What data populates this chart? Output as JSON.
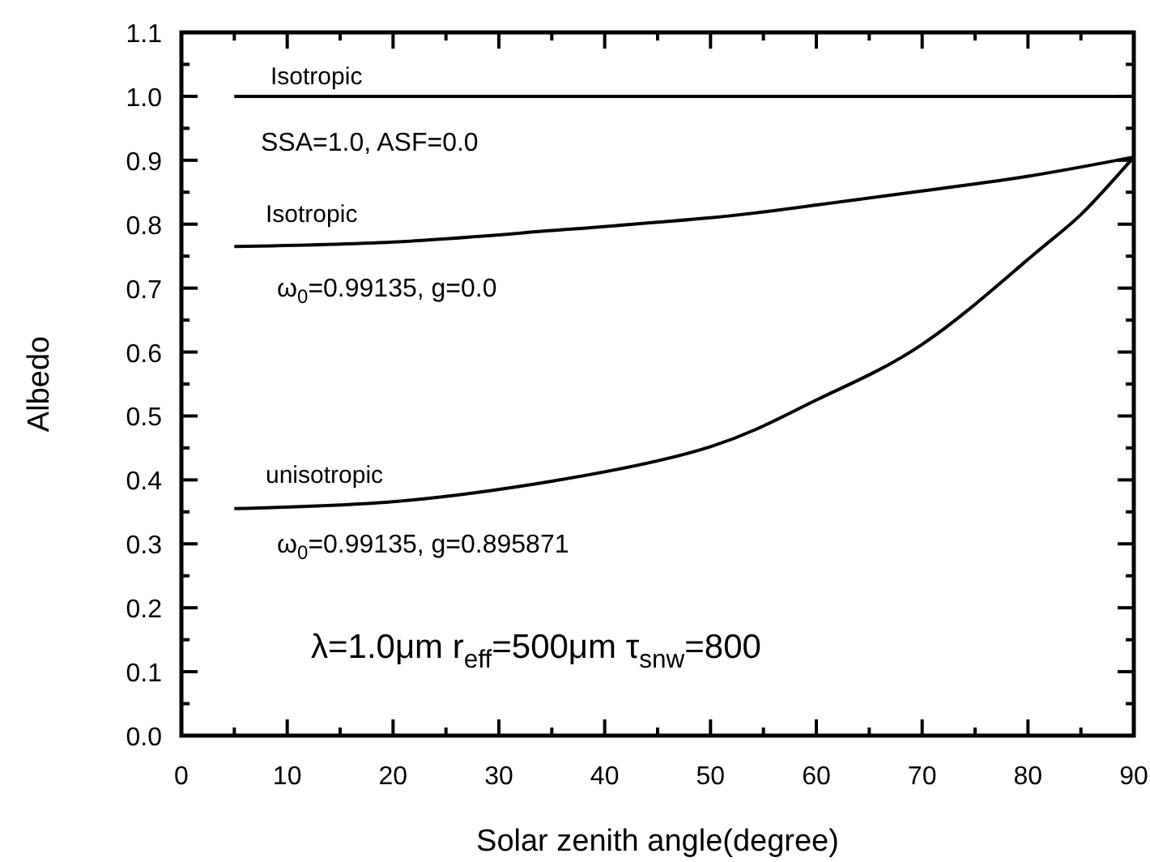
{
  "chart_data": {
    "type": "line",
    "xlabel": "Solar zenith angle(degree)",
    "ylabel": "Albedo",
    "xlim": [
      0,
      90
    ],
    "ylim": [
      0,
      1.1
    ],
    "xticks": [
      0,
      10,
      20,
      30,
      40,
      50,
      60,
      70,
      80,
      90
    ],
    "yticks": [
      {
        "value": 0,
        "label": "0.0"
      },
      {
        "value": 0.1,
        "label": "0.1"
      },
      {
        "value": 0.2,
        "label": "0.2"
      },
      {
        "value": 0.3,
        "label": "0.3"
      },
      {
        "value": 0.4,
        "label": "0.4"
      },
      {
        "value": 0.5,
        "label": "0.5"
      },
      {
        "value": 0.6,
        "label": "0.6"
      },
      {
        "value": 0.7,
        "label": "0.7"
      },
      {
        "value": 0.8,
        "label": "0.8"
      },
      {
        "value": 0.9,
        "label": "0.9"
      },
      {
        "value": 1.0,
        "label": "1.0"
      },
      {
        "value": 1.1,
        "label": "1.1"
      }
    ],
    "grid": false,
    "marker": "none",
    "line_style": "solid",
    "series": [
      {
        "color": "#000000",
        "x": [
          5,
          90
        ],
        "values": [
          1.0,
          1.0
        ]
      },
      {
        "color": "#000000",
        "x": [
          5,
          20,
          35,
          50,
          60,
          70,
          80,
          90
        ],
        "values": [
          0.765,
          0.772,
          0.79,
          0.81,
          0.83,
          0.852,
          0.875,
          0.905
        ]
      },
      {
        "color": "#000000",
        "x": [
          5,
          20,
          35,
          50,
          60,
          70,
          80,
          85,
          90
        ],
        "values": [
          0.355,
          0.366,
          0.398,
          0.452,
          0.525,
          0.612,
          0.745,
          0.815,
          0.905
        ]
      }
    ],
    "annotations": [
      "Isotropic",
      "SSA=1.0, ASF=0.0",
      "Isotropic",
      "ω$_{0}$=0.99135, g=0.0",
      "unisotropic",
      "ω$_{0}$=0.99135, g=0.895871",
      "λ=1.0μm r$_{eff}$=500μm τ$_{snw}$=800"
    ]
  }
}
